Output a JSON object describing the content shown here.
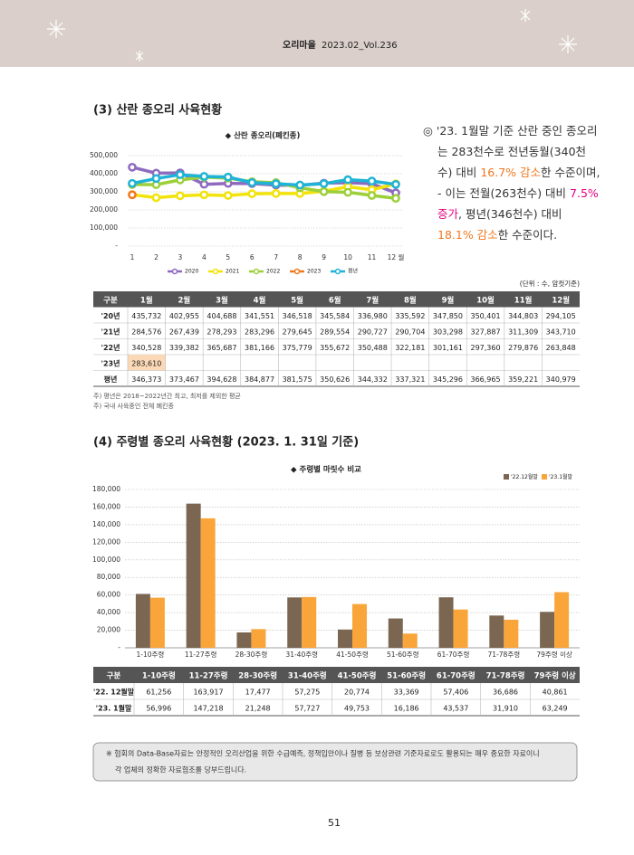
{
  "header": {
    "brand": "오리마을",
    "issue": "2023.02_Vol.236"
  },
  "section3": {
    "title": "(3) 산란 종오리 사육현황",
    "summary": [
      [
        {
          "text": "◎ '23. 1월말 기준 산란 중인 종오리"
        }
      ],
      [
        {
          "text": "는 283천수로  전년동월(340천"
        }
      ],
      [
        {
          "text": "수) 대비 "
        },
        {
          "text": "16.7% 감소",
          "color": "#f07820"
        },
        {
          "text": "한 수준이며,"
        }
      ],
      [
        {
          "text": "- 이는 전월(263천수) 대비 "
        },
        {
          "text": "7.5%",
          "color": "#e4007f"
        }
      ],
      [
        {
          "text": "증가",
          "color": "#e4007f"
        },
        {
          "text": ",  평년(346천수) 대비"
        }
      ],
      [
        {
          "text": "18.1% 감소",
          "color": "#f07820"
        },
        {
          "text": "한 수준이다."
        }
      ]
    ],
    "unit": "(단위 : 수, 암컷기준)",
    "table": {
      "header": [
        "구분",
        "1월",
        "2월",
        "3월",
        "4월",
        "5월",
        "6월",
        "7월",
        "8월",
        "9월",
        "10월",
        "11월",
        "12월"
      ],
      "rows": [
        [
          "'20년",
          "435,732",
          "402,955",
          "404,688",
          "341,551",
          "346,518",
          "345,584",
          "336,980",
          "335,592",
          "347,850",
          "350,401",
          "344,803",
          "294,105"
        ],
        [
          "'21년",
          "284,576",
          "267,439",
          "278,293",
          "283,296",
          "279,645",
          "289,554",
          "290,727",
          "290,704",
          "303,298",
          "327,887",
          "311,309",
          "343,710"
        ],
        [
          "'22년",
          "340,528",
          "339,382",
          "365,687",
          "381,166",
          "375,779",
          "355,672",
          "350,488",
          "322,181",
          "301,161",
          "297,360",
          "279,876",
          "263,848"
        ],
        [
          "'23년",
          "283,610"
        ],
        [
          "평년",
          "346,373",
          "373,467",
          "394,628",
          "384,877",
          "381,575",
          "350,626",
          "344,332",
          "337,321",
          "345,296",
          "366,965",
          "359,221",
          "340,979"
        ]
      ],
      "highlight_cell": [
        3,
        1
      ],
      "highlight_color": "#fcd9b6"
    },
    "notes": [
      "주) 평년은 2018~2022년간 최고, 최저를 제외한 평균",
      "주) 국내 사육중인 전체 폐킨종"
    ]
  },
  "section4": {
    "title": "(4) 주령별 종오리 사육현황 (2023. 1. 31일 기준)",
    "table": {
      "header": [
        "구분",
        "1-10주령",
        "11-27주령",
        "28-30주령",
        "31-40주령",
        "41-50주령",
        "51-60주령",
        "61-70주령",
        "71-78주령",
        "79주령 이상"
      ],
      "rows": [
        [
          "'22. 12월말",
          "61,256",
          "163,917",
          "17,477",
          "57,275",
          "20,774",
          "33,369",
          "57,406",
          "36,686",
          "40,861"
        ],
        [
          "'23. 1월말",
          "56,996",
          "147,218",
          "21,248",
          "57,727",
          "49,753",
          "16,186",
          "43,537",
          "31,910",
          "63,249"
        ]
      ]
    }
  },
  "chart_data": [
    {
      "type": "line",
      "title": "◆ 산란 종오리(폐킨종)",
      "categories": [
        "1",
        "2",
        "3",
        "4",
        "5",
        "6",
        "7",
        "8",
        "9",
        "10",
        "11",
        "12 월"
      ],
      "ylim": [
        0,
        500000
      ],
      "yticks": [
        {
          "value": 0,
          "label": "-"
        },
        {
          "value": 100000,
          "label": "100,000"
        },
        {
          "value": 200000,
          "label": "200,000"
        },
        {
          "value": 300000,
          "label": "300,000"
        },
        {
          "value": 400000,
          "label": "400,000"
        },
        {
          "value": 500000,
          "label": "500,000"
        }
      ],
      "grid": true,
      "legend": "bottom",
      "series": [
        {
          "name": "2020",
          "color": "#8e6bbf",
          "values": [
            435732,
            402955,
            404688,
            341551,
            346518,
            345584,
            336980,
            335592,
            347850,
            350401,
            344803,
            294105
          ]
        },
        {
          "name": "2021",
          "color": "#f2e30a",
          "values": [
            284576,
            267439,
            278293,
            283296,
            279645,
            289554,
            290727,
            290704,
            303298,
            327887,
            311309,
            343710
          ]
        },
        {
          "name": "2022",
          "color": "#9dcf3a",
          "values": [
            340528,
            339382,
            365687,
            381166,
            375779,
            355672,
            350488,
            322181,
            301161,
            297360,
            279876,
            263848
          ]
        },
        {
          "name": "2023",
          "color": "#f07820",
          "values": [
            283610,
            null,
            null,
            null,
            null,
            null,
            null,
            null,
            null,
            null,
            null,
            null
          ]
        },
        {
          "name": "평년",
          "color": "#1fb3d6",
          "values": [
            346373,
            373467,
            394628,
            384877,
            381575,
            350626,
            344332,
            337321,
            345296,
            366965,
            359221,
            340979
          ]
        }
      ]
    },
    {
      "type": "bar",
      "title": "◆ 주령별 마릿수 비교",
      "categories": [
        "1-10주령",
        "11-27주령",
        "28-30주령",
        "31-40주령",
        "41-50주령",
        "51-60주령",
        "61-70주령",
        "71-78주령",
        "79주령 이상"
      ],
      "ylim": [
        0,
        180000
      ],
      "yticks": [
        {
          "value": 0,
          "label": "-"
        },
        {
          "value": 20000,
          "label": "20,000"
        },
        {
          "value": 40000,
          "label": "40,000"
        },
        {
          "value": 60000,
          "label": "60,000"
        },
        {
          "value": 80000,
          "label": "80,000"
        },
        {
          "value": 100000,
          "label": "100,000"
        },
        {
          "value": 120000,
          "label": "120,000"
        },
        {
          "value": 140000,
          "label": "140,000"
        },
        {
          "value": 160000,
          "label": "160,000"
        },
        {
          "value": 180000,
          "label": "180,000"
        }
      ],
      "grid": true,
      "legend": "top-right",
      "series": [
        {
          "name": "'22.12월말",
          "color": "#7b6652",
          "values": [
            61256,
            163917,
            17477,
            57275,
            20774,
            33369,
            57406,
            36686,
            40861
          ]
        },
        {
          "name": "'23.1월말",
          "color": "#f9a53a",
          "values": [
            56996,
            147218,
            21248,
            57727,
            49753,
            16186,
            43537,
            31910,
            63249
          ]
        }
      ]
    }
  ],
  "footer": {
    "note": [
      "※ 협회의 Data-Base자료는 안정적인 오리산업을 위한 수급예측, 정책입안이나 질병 등 보상관련 기준자료로도 활용되는 매우 중요한 자료이니",
      "각 업체의 정확한 자료협조를 당부드립니다."
    ],
    "page": "51"
  }
}
